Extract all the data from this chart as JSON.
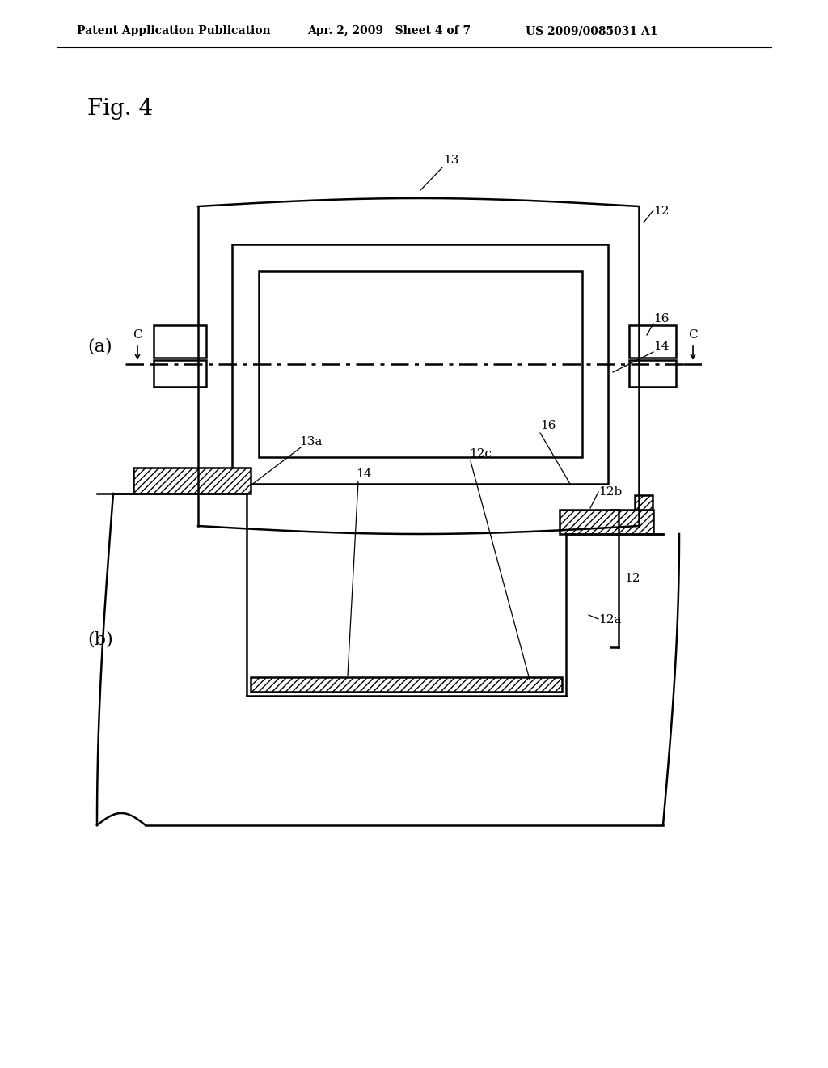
{
  "bg_color": "#ffffff",
  "header_left": "Patent Application Publication",
  "header_mid": "Apr. 2, 2009   Sheet 4 of 7",
  "header_right": "US 2009/0085031 A1",
  "fig_label": "Fig. 4",
  "sub_a_label": "(a)",
  "sub_b_label": "(b)",
  "line_color": "#000000"
}
